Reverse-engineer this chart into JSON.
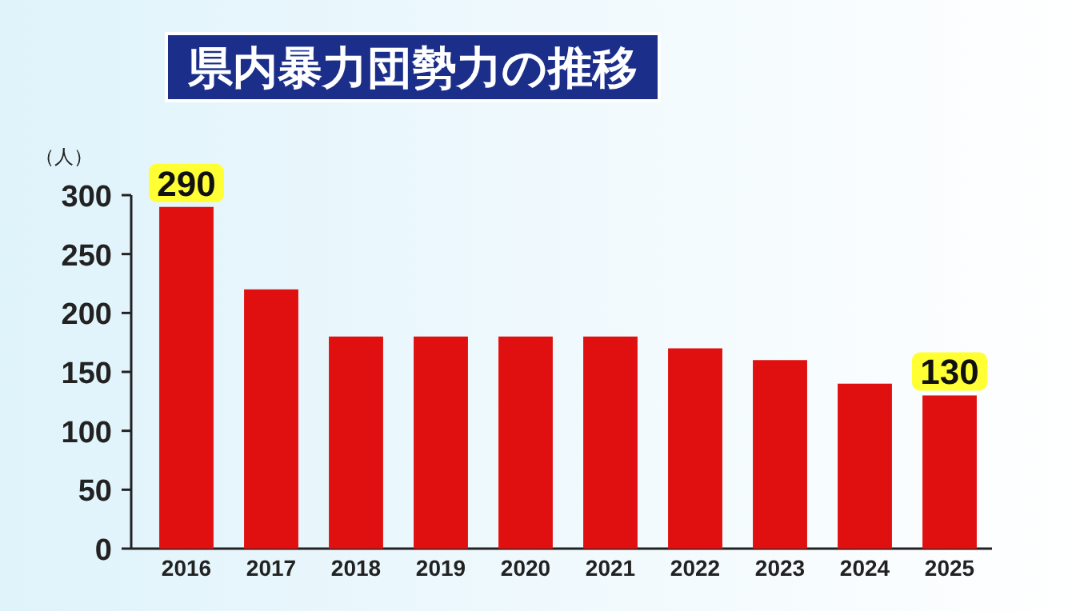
{
  "chart_data": {
    "type": "bar",
    "title": "県内暴力団勢力の推移",
    "ylabel": "（人）",
    "categories": [
      "2016",
      "2017",
      "2018",
      "2019",
      "2020",
      "2021",
      "2022",
      "2023",
      "2024",
      "2025"
    ],
    "values": [
      290,
      220,
      180,
      180,
      180,
      180,
      170,
      160,
      140,
      130
    ],
    "value_labels": [
      "290",
      null,
      null,
      null,
      null,
      null,
      null,
      null,
      null,
      "130"
    ],
    "color": "#e01010",
    "ylim": [
      0,
      300
    ],
    "yticks": [
      0,
      50,
      100,
      150,
      200,
      250,
      300
    ]
  }
}
